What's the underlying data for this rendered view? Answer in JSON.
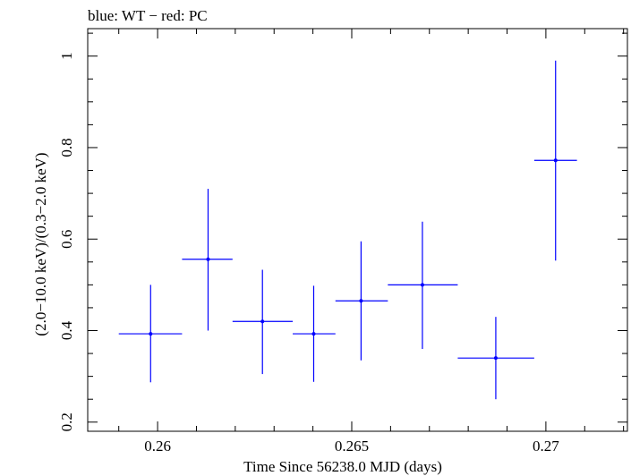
{
  "chart_data": {
    "type": "scatter",
    "title": "blue: WT − red: PC",
    "xlabel": "Time Since 56238.0 MJD (days)",
    "ylabel": "(2.0−10.0 keV)/(0.3−2.0 keV)",
    "xlim": [
      0.2582,
      0.2721
    ],
    "ylim": [
      0.18,
      1.06
    ],
    "x_ticks": [
      {
        "value": 0.26,
        "label": "0.26"
      },
      {
        "value": 0.265,
        "label": "0.265"
      },
      {
        "value": 0.27,
        "label": "0.27"
      }
    ],
    "y_ticks": [
      {
        "value": 0.2,
        "label": "0.2"
      },
      {
        "value": 0.4,
        "label": "0.4"
      },
      {
        "value": 0.6,
        "label": "0.6"
      },
      {
        "value": 0.8,
        "label": "0.8"
      },
      {
        "value": 1.0,
        "label": "1"
      }
    ],
    "grid": false,
    "series": [
      {
        "color": "#0000ff",
        "points": [
          {
            "x": 0.25982,
            "xlo": 0.259,
            "xhi": 0.26063,
            "y": 0.393,
            "ylo": 0.287,
            "yhi": 0.5
          },
          {
            "x": 0.2613,
            "xlo": 0.26063,
            "xhi": 0.26193,
            "y": 0.556,
            "ylo": 0.4,
            "yhi": 0.71
          },
          {
            "x": 0.2627,
            "xlo": 0.26193,
            "xhi": 0.26348,
            "y": 0.42,
            "ylo": 0.305,
            "yhi": 0.533
          },
          {
            "x": 0.26402,
            "xlo": 0.26348,
            "xhi": 0.26458,
            "y": 0.393,
            "ylo": 0.288,
            "yhi": 0.498
          },
          {
            "x": 0.26524,
            "xlo": 0.26458,
            "xhi": 0.26593,
            "y": 0.465,
            "ylo": 0.335,
            "yhi": 0.595
          },
          {
            "x": 0.26682,
            "xlo": 0.26593,
            "xhi": 0.26773,
            "y": 0.5,
            "ylo": 0.36,
            "yhi": 0.638
          },
          {
            "x": 0.26871,
            "xlo": 0.26773,
            "xhi": 0.2697,
            "y": 0.34,
            "ylo": 0.25,
            "yhi": 0.43
          },
          {
            "x": 0.27025,
            "xlo": 0.2697,
            "xhi": 0.2708,
            "y": 0.772,
            "ylo": 0.553,
            "yhi": 0.99
          }
        ]
      }
    ]
  }
}
